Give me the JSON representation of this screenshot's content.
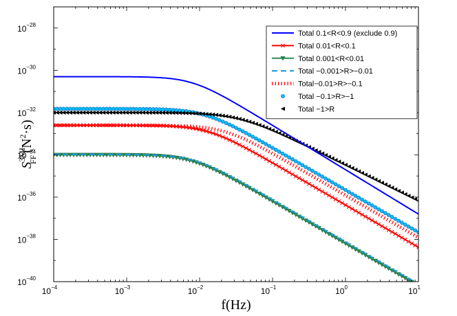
{
  "chart_data": {
    "type": "line",
    "title": "",
    "xlabel": "f(Hz)",
    "ylabel": {
      "base": "S",
      "sub": "FF",
      "sup": "3MI",
      "units_open": "(N",
      "units_sup": "2",
      "units_close": "·s)"
    },
    "xscale": "log",
    "yscale": "log",
    "xlim": [
      0.0001,
      10
    ],
    "ylim": [
      1e-40,
      1e-27
    ],
    "x_ticks": [
      {
        "value": 0.0001,
        "base": "10",
        "exp": "−4"
      },
      {
        "value": 0.001,
        "base": "10",
        "exp": "−3"
      },
      {
        "value": 0.01,
        "base": "10",
        "exp": "−2"
      },
      {
        "value": 0.1,
        "base": "10",
        "exp": "−1"
      },
      {
        "value": 1,
        "base": "10",
        "exp": "0"
      },
      {
        "value": 10,
        "base": "10",
        "exp": "1"
      }
    ],
    "y_ticks": [
      {
        "value": 1e-40,
        "base": "10",
        "exp": "−40"
      },
      {
        "value": 1e-38,
        "base": "10",
        "exp": "−38"
      },
      {
        "value": 1e-36,
        "base": "10",
        "exp": "−36"
      },
      {
        "value": 1e-34,
        "base": "10",
        "exp": "−34"
      },
      {
        "value": 1e-32,
        "base": "10",
        "exp": "−32"
      },
      {
        "value": 1e-30,
        "base": "10",
        "exp": "−30"
      },
      {
        "value": 1e-28,
        "base": "10",
        "exp": "−28"
      }
    ],
    "grid": false,
    "legend_position": "top-right",
    "series": [
      {
        "name": "Total 0.1<R<0.9 (exclude 0.9)",
        "style": "solid",
        "marker": "none",
        "color": "#0000ff",
        "plateau": 5e-31,
        "corner": 0.008,
        "slope": 2.1
      },
      {
        "name": "Total 0.01<R<0.1",
        "style": "solid",
        "marker": "x",
        "color": "#ff0000",
        "plateau": 2.5e-33,
        "corner": 0.013,
        "slope": 2.0
      },
      {
        "name": "Total 0.001<R<0.01",
        "style": "solid",
        "marker": "triangle-down",
        "color": "#2e8b57",
        "plateau": 1e-34,
        "corner": 0.008,
        "slope": 2.0
      },
      {
        "name": "Total −0.001>R>−0.01",
        "style": "dashed",
        "marker": "none",
        "color": "#1f9ad6",
        "plateau": 1.05e-34,
        "corner": 0.0085,
        "slope": 2.0
      },
      {
        "name": "Total−0.01>R>−0.1",
        "style": "dotted",
        "marker": "none",
        "color": "#ff0000",
        "plateau": 2.5e-33,
        "corner": 0.022,
        "slope": 2.0
      },
      {
        "name": "Total −0.1>R>−1",
        "style": "none",
        "marker": "circle",
        "color": "#00bfff",
        "plateau": 1.5e-32,
        "corner": 0.012,
        "slope": 2.0
      },
      {
        "name": "Total −1>R",
        "style": "none",
        "marker": "triangle-left",
        "color": "#000000",
        "plateau": 1e-32,
        "corner": 0.035,
        "slope": 1.7
      }
    ]
  }
}
